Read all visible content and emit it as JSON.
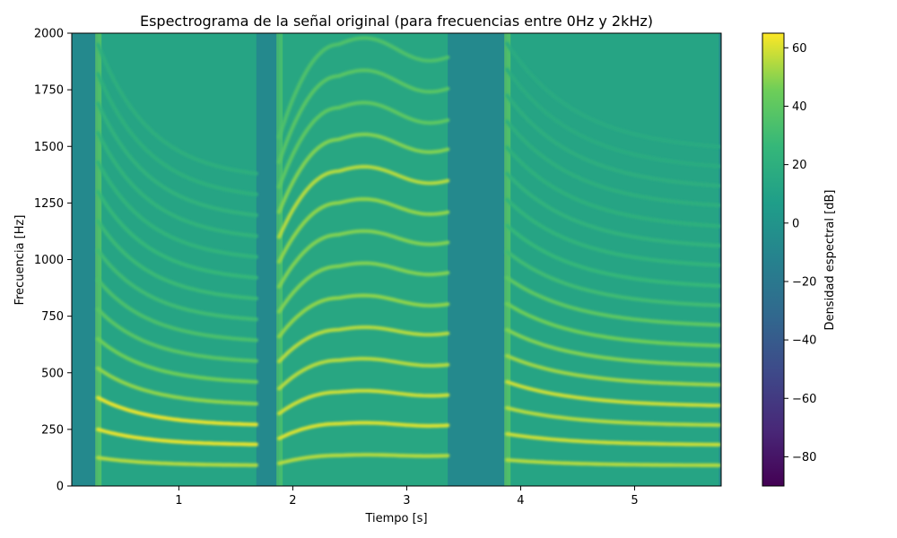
{
  "chart_data": {
    "type": "heatmap",
    "title": "Espectrograma de la señal original (para frecuencias entre 0Hz y 2kHz)",
    "xlabel": "Tiempo [s]",
    "ylabel": "Frecuencia [Hz]",
    "colorbar_label": "Densidad espectral [dB]",
    "colormap": "viridis",
    "xlim": [
      0.06,
      5.76
    ],
    "ylim": [
      0,
      2000
    ],
    "clim": [
      -90,
      65
    ],
    "xticks": [
      1,
      2,
      3,
      4,
      5
    ],
    "xtick_labels": [
      "1",
      "2",
      "3",
      "4",
      "5"
    ],
    "yticks": [
      0,
      250,
      500,
      750,
      1000,
      1250,
      1500,
      1750,
      2000
    ],
    "ytick_labels": [
      "0",
      "250",
      "500",
      "750",
      "1000",
      "1250",
      "1500",
      "1750",
      "2000"
    ],
    "colorbar_ticks": [
      60,
      40,
      20,
      0,
      -20,
      -40,
      -60,
      -80
    ],
    "colorbar_tick_labels": [
      "60",
      "40",
      "20",
      "0",
      "−20",
      "−40",
      "−60",
      "−80"
    ],
    "background_db": -8,
    "segments": [
      {
        "name": "segment-1",
        "t_start": 0.29,
        "t_end": 1.68,
        "onset_db": 40,
        "level_db": 14,
        "harmonics": [
          {
            "f_start": 125,
            "f_end": 90,
            "db": 55
          },
          {
            "f_start": 250,
            "f_end": 180,
            "db": 62
          },
          {
            "f_start": 390,
            "f_end": 265,
            "db": 62
          },
          {
            "f_start": 520,
            "f_end": 355,
            "db": 50
          },
          {
            "f_start": 650,
            "f_end": 450,
            "db": 45
          },
          {
            "f_start": 780,
            "f_end": 540,
            "db": 38
          },
          {
            "f_start": 910,
            "f_end": 630,
            "db": 34
          },
          {
            "f_start": 1040,
            "f_end": 720,
            "db": 30
          },
          {
            "f_start": 1170,
            "f_end": 810,
            "db": 28
          },
          {
            "f_start": 1300,
            "f_end": 900,
            "db": 26
          },
          {
            "f_start": 1430,
            "f_end": 990,
            "db": 24
          },
          {
            "f_start": 1560,
            "f_end": 1080,
            "db": 23
          },
          {
            "f_start": 1690,
            "f_end": 1170,
            "db": 22
          },
          {
            "f_start": 1820,
            "f_end": 1260,
            "db": 21
          },
          {
            "f_start": 1950,
            "f_end": 1350,
            "db": 20
          }
        ]
      },
      {
        "name": "segment-2",
        "t_start": 1.88,
        "t_end": 3.36,
        "onset_db": 35,
        "level_db": 16,
        "harmonics": [
          {
            "f_start": 100,
            "f_peak": 135,
            "f_end": 135,
            "db": 55
          },
          {
            "f_start": 210,
            "f_peak": 275,
            "f_end": 270,
            "db": 60
          },
          {
            "f_start": 320,
            "f_peak": 415,
            "f_end": 405,
            "db": 58
          },
          {
            "f_start": 430,
            "f_peak": 555,
            "f_end": 540,
            "db": 55
          },
          {
            "f_start": 550,
            "f_peak": 690,
            "f_end": 680,
            "db": 55
          },
          {
            "f_start": 660,
            "f_peak": 830,
            "f_end": 810,
            "db": 50
          },
          {
            "f_start": 770,
            "f_peak": 970,
            "f_end": 950,
            "db": 48
          },
          {
            "f_start": 880,
            "f_peak": 1110,
            "f_end": 1085,
            "db": 48
          },
          {
            "f_start": 990,
            "f_peak": 1250,
            "f_end": 1220,
            "db": 50
          },
          {
            "f_start": 1100,
            "f_peak": 1390,
            "f_end": 1360,
            "db": 55
          },
          {
            "f_start": 1210,
            "f_peak": 1530,
            "f_end": 1500,
            "db": 48
          },
          {
            "f_start": 1320,
            "f_peak": 1670,
            "f_end": 1630,
            "db": 40
          },
          {
            "f_start": 1430,
            "f_peak": 1810,
            "f_end": 1770,
            "db": 38
          },
          {
            "f_start": 1540,
            "f_peak": 1950,
            "f_end": 1910,
            "db": 35
          }
        ]
      },
      {
        "name": "segment-3",
        "t_start": 3.88,
        "t_end": 5.74,
        "onset_db": 40,
        "level_db": 14,
        "harmonics": [
          {
            "f_start": 115,
            "f_end": 90,
            "db": 55
          },
          {
            "f_start": 230,
            "f_end": 180,
            "db": 58
          },
          {
            "f_start": 345,
            "f_end": 265,
            "db": 55
          },
          {
            "f_start": 460,
            "f_end": 350,
            "db": 58
          },
          {
            "f_start": 575,
            "f_end": 440,
            "db": 52
          },
          {
            "f_start": 690,
            "f_end": 525,
            "db": 48
          },
          {
            "f_start": 805,
            "f_end": 610,
            "db": 45
          },
          {
            "f_start": 920,
            "f_end": 700,
            "db": 40
          },
          {
            "f_start": 1035,
            "f_end": 785,
            "db": 30
          },
          {
            "f_start": 1150,
            "f_end": 870,
            "db": 26
          },
          {
            "f_start": 1265,
            "f_end": 960,
            "db": 24
          },
          {
            "f_start": 1380,
            "f_end": 1045,
            "db": 22
          },
          {
            "f_start": 1495,
            "f_end": 1130,
            "db": 21
          },
          {
            "f_start": 1610,
            "f_end": 1220,
            "db": 20
          },
          {
            "f_start": 1725,
            "f_end": 1305,
            "db": 19
          },
          {
            "f_start": 1840,
            "f_end": 1390,
            "db": 18
          },
          {
            "f_start": 1955,
            "f_end": 1475,
            "db": 17
          }
        ]
      }
    ]
  }
}
